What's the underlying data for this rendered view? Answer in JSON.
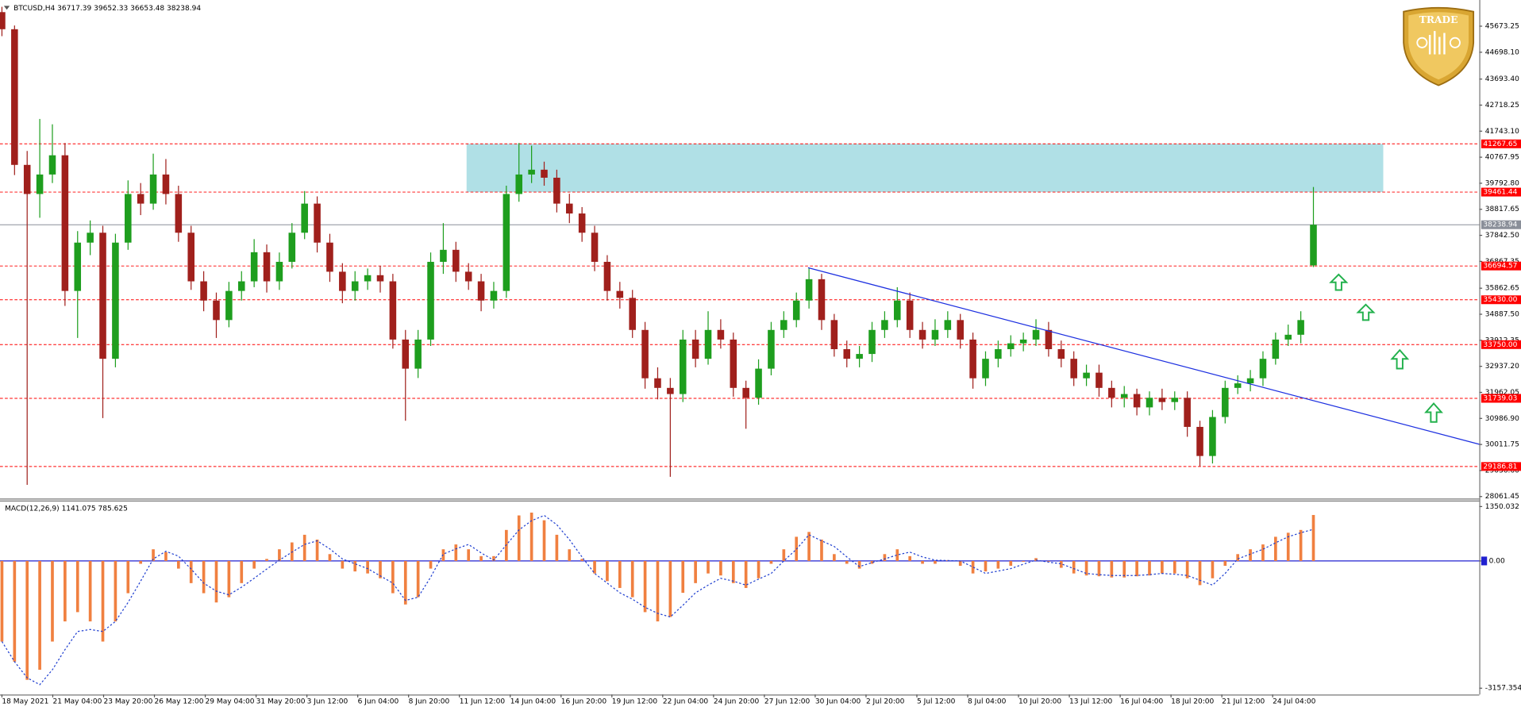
{
  "chart_data": {
    "type": "candlestick",
    "symbol": "BTCUSD,H4",
    "bull_color": "#1e9e1e",
    "bear_color": "#a0201c",
    "level_color": "#ff0000",
    "current_color": "#8a8f99",
    "zone_color": "#b0e0e6",
    "ylim": [
      28022,
      46654
    ],
    "yticks": [
      45673.25,
      {
        "value": 44698.1,
        "label": "44698.10"
      },
      {
        "value": 43693.4,
        "label": "43693.40"
      },
      42718.25,
      {
        "value": 41743.1,
        "label": "41743.10"
      },
      40767.95,
      {
        "value": 39792.8,
        "label": "39792.80"
      },
      38817.65,
      {
        "value": 37842.5,
        "label": "37842.50"
      },
      36867.35,
      35862.65,
      {
        "value": 34887.5,
        "label": "34887.50"
      },
      33912.35,
      {
        "value": 32937.2,
        "label": "32937.20"
      },
      31962.05,
      {
        "value": 30986.9,
        "label": "30986.90"
      },
      30011.75,
      {
        "value": 29036.6,
        "label": "29036.60"
      },
      28061.45
    ],
    "levels": [
      41267.65,
      39461.44,
      36694.57,
      {
        "value": 35430,
        "label": "35430.00"
      },
      {
        "value": 33750,
        "label": "33750.00"
      },
      31739.03,
      29186.81
    ],
    "xlabels": [
      "18 May 2021",
      "21 May 04:00",
      "23 May 20:00",
      "26 May 12:00",
      "29 May 04:00",
      "31 May 20:00",
      "3 Jun 12:00",
      "6 Jun 04:00",
      "8 Jun 20:00",
      "11 Jun 12:00",
      "14 Jun 04:00",
      "16 Jun 20:00",
      "19 Jun 12:00",
      "22 Jun 04:00",
      "24 Jun 20:00",
      "27 Jun 12:00",
      "30 Jun 04:00",
      "2 Jul 20:00",
      "5 Jul 12:00",
      "8 Jul 04:00",
      "10 Jul 20:00",
      "13 Jul 12:00",
      "16 Jul 04:00",
      "18 Jul 20:00",
      "21 Jul 12:00",
      "24 Jul 04:00"
    ],
    "candles": [
      [
        46200,
        46400,
        45300,
        45560
      ],
      [
        45560,
        45700,
        40100,
        40480
      ],
      [
        40480,
        41000,
        28500,
        39390
      ],
      [
        39390,
        42200,
        38500,
        40120
      ],
      [
        40120,
        42000,
        39800,
        40840
      ],
      [
        40840,
        41300,
        35200,
        35760
      ],
      [
        35760,
        38000,
        34000,
        37570
      ],
      [
        37570,
        38400,
        37100,
        37940
      ],
      [
        37940,
        38200,
        31000,
        33220
      ],
      [
        33220,
        37900,
        32900,
        37570
      ],
      [
        37570,
        39900,
        37300,
        39390
      ],
      [
        39390,
        39800,
        38600,
        39030
      ],
      [
        39030,
        40900,
        38800,
        40120
      ],
      [
        40120,
        40700,
        39000,
        39390
      ],
      [
        39390,
        39700,
        37600,
        37940
      ],
      [
        37940,
        38200,
        35800,
        36120
      ],
      [
        36120,
        36500,
        35000,
        35400
      ],
      [
        35400,
        35700,
        34000,
        34670
      ],
      [
        34670,
        36100,
        34400,
        35760
      ],
      [
        35760,
        36500,
        35400,
        36120
      ],
      [
        36120,
        37700,
        35900,
        37210
      ],
      [
        37210,
        37500,
        35700,
        36120
      ],
      [
        36120,
        37200,
        35800,
        36850
      ],
      [
        36850,
        38300,
        36600,
        37940
      ],
      [
        37940,
        39500,
        37700,
        39030
      ],
      [
        39030,
        39300,
        37200,
        37570
      ],
      [
        37570,
        37900,
        36100,
        36480
      ],
      [
        36480,
        36800,
        35300,
        35760
      ],
      [
        35760,
        36500,
        35400,
        36120
      ],
      [
        36120,
        36600,
        35800,
        36350
      ],
      [
        36350,
        36700,
        35700,
        36120
      ],
      [
        36120,
        36400,
        33600,
        33940
      ],
      [
        33940,
        34300,
        30900,
        32850
      ],
      [
        32850,
        34300,
        32500,
        33940
      ],
      [
        33940,
        37200,
        33700,
        36850
      ],
      [
        36850,
        38300,
        36400,
        37300
      ],
      [
        37300,
        37600,
        36100,
        36480
      ],
      [
        36480,
        36800,
        35800,
        36120
      ],
      [
        36120,
        36400,
        35000,
        35400
      ],
      [
        35400,
        36100,
        35100,
        35760
      ],
      [
        35760,
        39700,
        35500,
        39390
      ],
      [
        39390,
        41300,
        39100,
        40120
      ],
      [
        40120,
        41200,
        39800,
        40300
      ],
      [
        40300,
        40600,
        39700,
        40000
      ],
      [
        40000,
        40300,
        38700,
        39030
      ],
      [
        39030,
        39400,
        38300,
        38660
      ],
      [
        38660,
        38900,
        37600,
        37940
      ],
      [
        37940,
        38200,
        36500,
        36850
      ],
      [
        36850,
        37100,
        35400,
        35760
      ],
      [
        35760,
        36100,
        35100,
        35500
      ],
      [
        35500,
        35800,
        34000,
        34300
      ],
      [
        34300,
        34600,
        32100,
        32490
      ],
      [
        32490,
        32900,
        31700,
        32130
      ],
      [
        32130,
        32500,
        28800,
        31900
      ],
      [
        31900,
        34300,
        31600,
        33940
      ],
      [
        33940,
        34300,
        32900,
        33220
      ],
      [
        33220,
        35000,
        33000,
        34300
      ],
      [
        34300,
        34700,
        33600,
        33940
      ],
      [
        33940,
        34200,
        31800,
        32130
      ],
      [
        32130,
        32400,
        30600,
        31760
      ],
      [
        31760,
        33200,
        31500,
        32850
      ],
      [
        32850,
        34600,
        32600,
        34300
      ],
      [
        34300,
        35000,
        34000,
        34670
      ],
      [
        34670,
        35700,
        34400,
        35400
      ],
      [
        35400,
        36600,
        35100,
        36200
      ],
      [
        36200,
        36400,
        34300,
        34670
      ],
      [
        34670,
        34900,
        33300,
        33580
      ],
      [
        33580,
        33900,
        32900,
        33220
      ],
      [
        33220,
        33700,
        32900,
        33400
      ],
      [
        33400,
        34600,
        33100,
        34300
      ],
      [
        34300,
        35000,
        34000,
        34670
      ],
      [
        34670,
        35900,
        34400,
        35400
      ],
      [
        35400,
        35700,
        34000,
        34300
      ],
      [
        34300,
        34600,
        33600,
        33940
      ],
      [
        33940,
        34700,
        33700,
        34300
      ],
      [
        34300,
        35000,
        34000,
        34670
      ],
      [
        34670,
        34900,
        33600,
        33940
      ],
      [
        33940,
        34200,
        32100,
        32490
      ],
      [
        32490,
        33500,
        32200,
        33220
      ],
      [
        33220,
        33900,
        32900,
        33580
      ],
      [
        33580,
        34100,
        33300,
        33800
      ],
      [
        33800,
        34200,
        33500,
        33940
      ],
      [
        33940,
        34700,
        33700,
        34300
      ],
      [
        34300,
        34600,
        33300,
        33580
      ],
      [
        33580,
        33900,
        32900,
        33220
      ],
      [
        33220,
        33500,
        32200,
        32490
      ],
      [
        32490,
        33000,
        32200,
        32700
      ],
      [
        32700,
        33000,
        31800,
        32130
      ],
      [
        32130,
        32400,
        31400,
        31760
      ],
      [
        31760,
        32200,
        31400,
        31900
      ],
      [
        31900,
        32100,
        31100,
        31400
      ],
      [
        31400,
        32000,
        31100,
        31760
      ],
      [
        31760,
        32100,
        31300,
        31600
      ],
      [
        31600,
        32000,
        31300,
        31760
      ],
      [
        31760,
        32000,
        30300,
        30670
      ],
      [
        30670,
        30900,
        29200,
        29580
      ],
      [
        29580,
        31300,
        29300,
        31040
      ],
      [
        31040,
        32400,
        30800,
        32130
      ],
      [
        32130,
        32600,
        31900,
        32300
      ],
      [
        32300,
        32800,
        32000,
        32490
      ],
      [
        32490,
        33500,
        32200,
        33220
      ],
      [
        33220,
        34200,
        33000,
        33940
      ],
      [
        33940,
        34500,
        33700,
        34120
      ],
      [
        34120,
        35000,
        33800,
        34670
      ],
      [
        36717.39,
        39652.33,
        36653.48,
        38238.94
      ]
    ],
    "macd": {
      "name": "MACD(12,26,9)",
      "hist_color": "#f08040",
      "signal_color": "#1f3fd0",
      "zero_color": "#2020d0",
      "ylim": [
        -3290,
        1500
      ],
      "yticks": [
        1350.032,
        {
          "value": 0,
          "label": "0.00"
        },
        -3157.354
      ],
      "histogram": [
        -2000,
        -2500,
        -2950,
        -2700,
        -2000,
        -1500,
        -1270,
        -1500,
        -2000,
        -1500,
        -800,
        -70,
        290,
        220,
        -190,
        -550,
        -800,
        -1030,
        -900,
        -550,
        -190,
        50,
        290,
        460,
        650,
        530,
        170,
        -190,
        -260,
        -310,
        -430,
        -800,
        -1080,
        -900,
        -190,
        290,
        410,
        290,
        120,
        120,
        770,
        1130,
        1200,
        1010,
        650,
        290,
        50,
        -310,
        -500,
        -670,
        -900,
        -1270,
        -1500,
        -1390,
        -790,
        -550,
        -310,
        -360,
        -550,
        -670,
        -430,
        -70,
        290,
        600,
        720,
        530,
        170,
        -70,
        -190,
        -70,
        170,
        290,
        120,
        -70,
        -70,
        20,
        -120,
        -310,
        -260,
        -190,
        -120,
        -20,
        70,
        -20,
        -170,
        -310,
        -360,
        -380,
        -410,
        -410,
        -380,
        -360,
        -310,
        -310,
        -430,
        -600,
        -430,
        -120,
        170,
        290,
        410,
        600,
        700,
        770,
        1141.075
      ],
      "signal": [
        -2000,
        -2500,
        -2900,
        -3070,
        -2700,
        -2200,
        -1750,
        -1700,
        -1750,
        -1500,
        -1030,
        -500,
        50,
        240,
        120,
        -200,
        -550,
        -750,
        -840,
        -650,
        -430,
        -200,
        20,
        220,
        410,
        500,
        300,
        50,
        -70,
        -190,
        -370,
        -550,
        -980,
        -900,
        -400,
        170,
        300,
        410,
        200,
        20,
        400,
        770,
        1000,
        1130,
        900,
        530,
        100,
        -310,
        -550,
        -790,
        -950,
        -1150,
        -1300,
        -1390,
        -1100,
        -790,
        -600,
        -430,
        -500,
        -600,
        -450,
        -310,
        0,
        290,
        650,
        500,
        360,
        100,
        -140,
        -40,
        50,
        150,
        220,
        100,
        20,
        10,
        0,
        -150,
        -310,
        -250,
        -190,
        -80,
        20,
        -30,
        -70,
        -190,
        -310,
        -340,
        -360,
        -360,
        -360,
        -340,
        -310,
        -330,
        -360,
        -480,
        -600,
        -310,
        50,
        170,
        290,
        450,
        600,
        700,
        785.625
      ]
    },
    "logo": "TRADE"
  }
}
